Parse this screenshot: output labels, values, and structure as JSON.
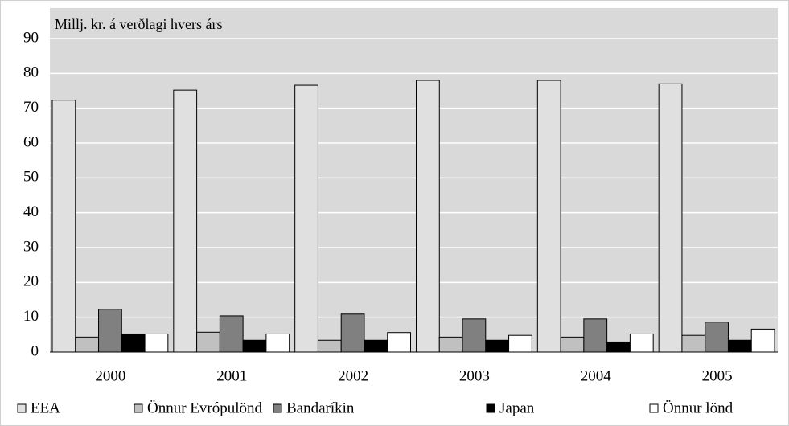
{
  "chart_data": {
    "type": "bar",
    "title": "Millj. kr. á verðlagi hvers árs",
    "categories": [
      "2000",
      "2001",
      "2002",
      "2003",
      "2004",
      "2005"
    ],
    "series": [
      {
        "name": "EEA",
        "color": "#e0e0e0",
        "values": [
          72.3,
          75.2,
          76.6,
          78,
          78,
          77
        ]
      },
      {
        "name": "Önnur Evrópulönd",
        "color": "#c0c0c0",
        "values": [
          4.3,
          5.7,
          3.4,
          4.3,
          4.3,
          4.8
        ]
      },
      {
        "name": "Bandaríkin",
        "color": "#808080",
        "values": [
          12.3,
          10.4,
          10.9,
          9.5,
          9.5,
          8.6
        ]
      },
      {
        "name": "Japan",
        "color": "#000000",
        "values": [
          5.2,
          3.4,
          3.4,
          3.4,
          2.9,
          3.4
        ]
      },
      {
        "name": "Önnur lönd",
        "color": "#ffffff",
        "values": [
          5.2,
          5.2,
          5.6,
          4.8,
          5.2,
          6.6
        ]
      }
    ],
    "ylim": [
      0,
      90
    ],
    "yticks": [
      0,
      10,
      20,
      30,
      40,
      50,
      60,
      70,
      80,
      90
    ],
    "grid": true
  }
}
